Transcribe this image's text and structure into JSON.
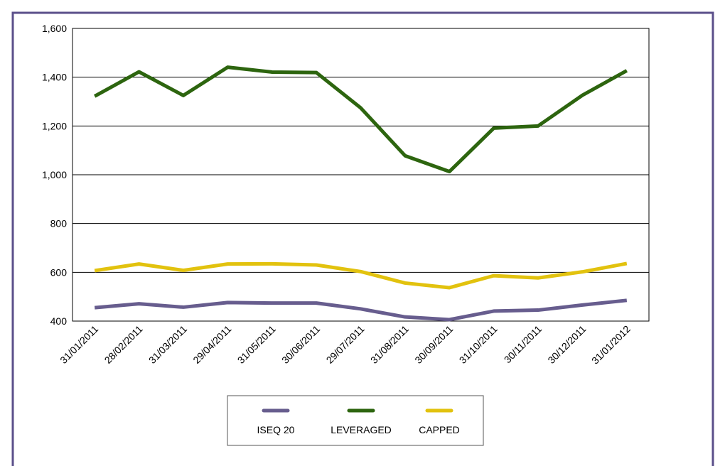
{
  "chart_data": {
    "type": "line",
    "categories": [
      "31/01/2011",
      "28/02/2011",
      "31/03/2011",
      "29/04/2011",
      "31/05/2011",
      "30/06/2011",
      "29/07/2011",
      "31/08/2011",
      "30/09/2011",
      "31/10/2011",
      "30/11/2011",
      "30/12/2011",
      "31/01/2012"
    ],
    "series": [
      {
        "name": "ISEQ 20",
        "color": "#675d8e",
        "values": [
          455,
          471,
          457,
          476,
          474,
          474,
          450,
          417,
          406,
          441,
          445,
          466,
          485
        ]
      },
      {
        "name": "LEVERAGED",
        "color": "#2d650f",
        "values": [
          1322,
          1422,
          1325,
          1441,
          1421,
          1419,
          1274,
          1078,
          1013,
          1191,
          1200,
          1326,
          1427
        ]
      },
      {
        "name": "CAPPED",
        "color": "#e2c20e",
        "values": [
          607,
          634,
          608,
          634,
          635,
          630,
          603,
          556,
          537,
          586,
          577,
          602,
          636
        ]
      }
    ],
    "ylim": [
      400,
      1600
    ],
    "yticks": [
      400,
      600,
      800,
      {
        "value": 1000,
        "label": "1,000"
      },
      {
        "value": 1200,
        "label": "1,200"
      },
      {
        "value": 1400,
        "label": "1,400"
      },
      {
        "value": 1600,
        "label": "1,600"
      }
    ],
    "grid": true,
    "legend": "bottom"
  }
}
